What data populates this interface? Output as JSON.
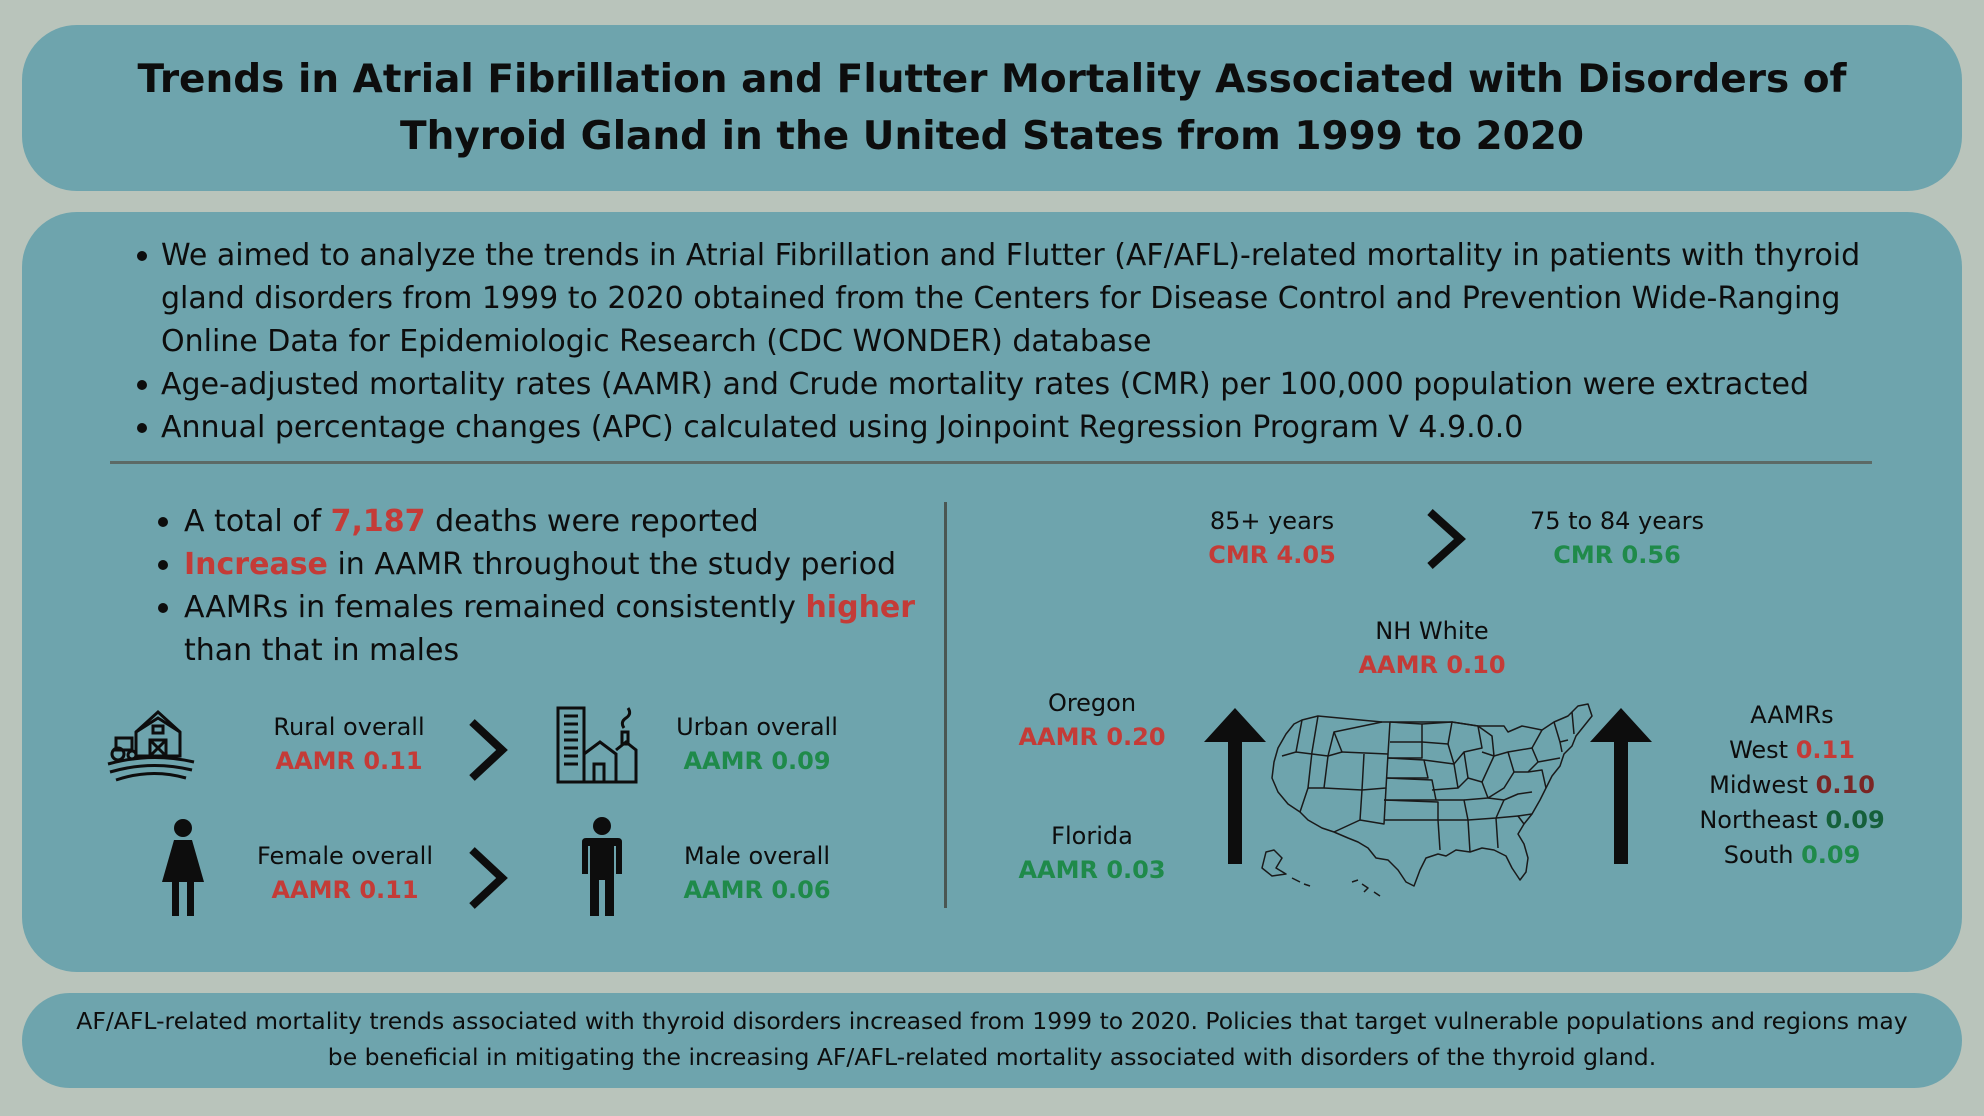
{
  "title": "Trends in Atrial Fibrillation and Flutter Mortality Associated with Disorders of Thyroid Gland in the United States from 1999 to 2020",
  "intro": [
    "We aimed to analyze the trends in Atrial Fibrillation and Flutter (AF/AFL)-related mortality in patients with thyroid gland disorders from 1999 to 2020 obtained from the Centers for Disease Control and Prevention Wide-Ranging Online Data for Epidemiologic Research (CDC WONDER) database",
    "Age-adjusted mortality rates (AAMR) and Crude mortality rates (CMR) per 100,000 population were extracted",
    "Annual percentage changes (APC) calculated using Joinpoint Regression Program V 4.9.0.0"
  ],
  "findings": {
    "f1_pre": "A total of ",
    "f1_hl": "7,187",
    "f1_post": " deaths were reported",
    "f2_hl": "Increase",
    "f2_post": " in AAMR throughout the study period",
    "f3_pre": "AAMRs in females remained consistently ",
    "f3_hl": "higher",
    "f3_post": " than that in males"
  },
  "comparisons": {
    "rural_label": "Rural overall",
    "rural_value": "AAMR 0.11",
    "urban_label": "Urban overall",
    "urban_value": "AAMR 0.09",
    "female_label": "Female overall",
    "female_value": "AAMR 0.11",
    "male_label": "Male overall",
    "male_value": "AAMR 0.06"
  },
  "age": {
    "old_label": "85+ years",
    "old_value": "CMR 4.05",
    "young_label": "75 to 84 years",
    "young_value": "CMR 0.56"
  },
  "race": {
    "label": "NH White",
    "value": "AAMR 0.10"
  },
  "states": {
    "high_label": "Oregon",
    "high_value": "AAMR 0.20",
    "low_label": "Florida",
    "low_value": "AAMR 0.03"
  },
  "regions": {
    "heading": "AAMRs",
    "items": [
      {
        "name": "West",
        "value": "0.11",
        "color": "#c43b37"
      },
      {
        "name": "Midwest",
        "value": "0.10",
        "color": "#7a2624"
      },
      {
        "name": "Northeast",
        "value": "0.09",
        "color": "#15603a"
      },
      {
        "name": "South",
        "value": "0.09",
        "color": "#1f8a4a"
      }
    ]
  },
  "footer": "AF/AFL-related mortality trends associated with thyroid disorders increased from 1999 to 2020. Policies that target vulnerable populations and regions may be beneficial in mitigating the increasing AF/AFL-related mortality associated with disorders of the thyroid gland.",
  "colors": {
    "background": "#b9c4bb",
    "panel": "#6ea4ad",
    "highlight_red": "#c43b37",
    "highlight_green": "#1f8a4a"
  },
  "icons": [
    "barn-farm-icon",
    "city-buildings-icon",
    "female-person-icon",
    "male-person-icon",
    "chevron-right-icon",
    "arrow-up-icon",
    "us-map-icon"
  ]
}
